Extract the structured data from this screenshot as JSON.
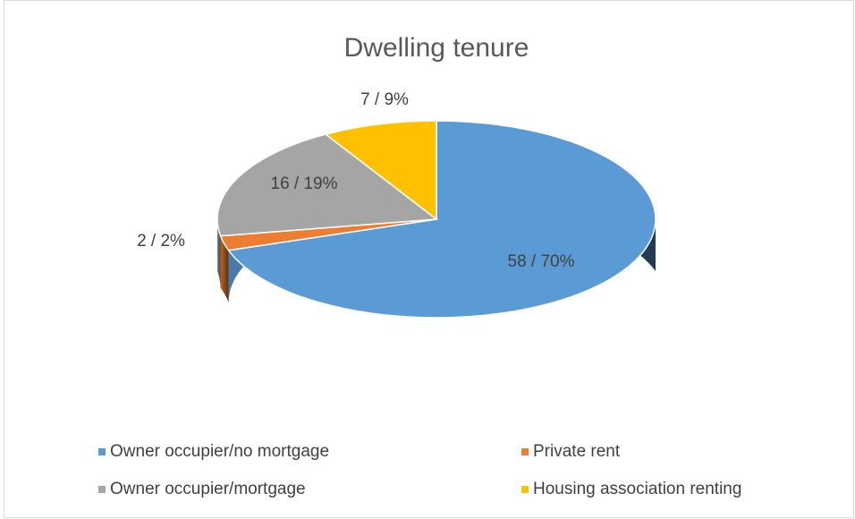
{
  "chart_data": {
    "type": "pie3d",
    "title": "Dwelling tenure",
    "categories": [
      "Owner occupier/no mortgage",
      "Private rent",
      "Owner occupier/mortgage",
      "Housing association renting"
    ],
    "values": [
      58,
      2,
      16,
      7
    ],
    "value_labels": [
      "58 / 70%",
      "2 / 2%",
      "16 / 19%",
      "7 / 9%"
    ],
    "colors": [
      "#5b9bd5",
      "#ed7d31",
      "#a5a5a5",
      "#ffc000"
    ],
    "legend": "bottom"
  }
}
